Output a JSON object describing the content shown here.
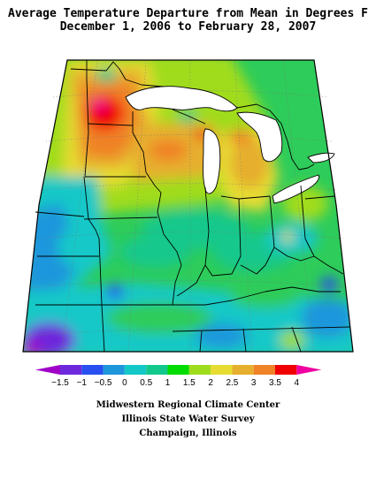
{
  "title": {
    "line1": "Average Temperature Departure from Mean in Degrees F",
    "line2": "December 1, 2006 to February 28, 2007"
  },
  "legend": {
    "ticks": [
      "−1.5",
      "−1",
      "−0.5",
      "0",
      "0.5",
      "1",
      "1.5",
      "2",
      "2.5",
      "3",
      "3.5",
      "4"
    ],
    "colors": [
      "#a000c8",
      "#6e28dc",
      "#2850f0",
      "#1e96dc",
      "#14c8c8",
      "#14c88c",
      "#00dc00",
      "#a0dc1e",
      "#e6dc32",
      "#e6af2d",
      "#f08228",
      "#f00000",
      "#f000a0"
    ]
  },
  "credits": {
    "line1": "Midwestern Regional Climate Center",
    "line2": "Illinois State Water Survey",
    "line3": "Champaign, Illinois"
  }
}
